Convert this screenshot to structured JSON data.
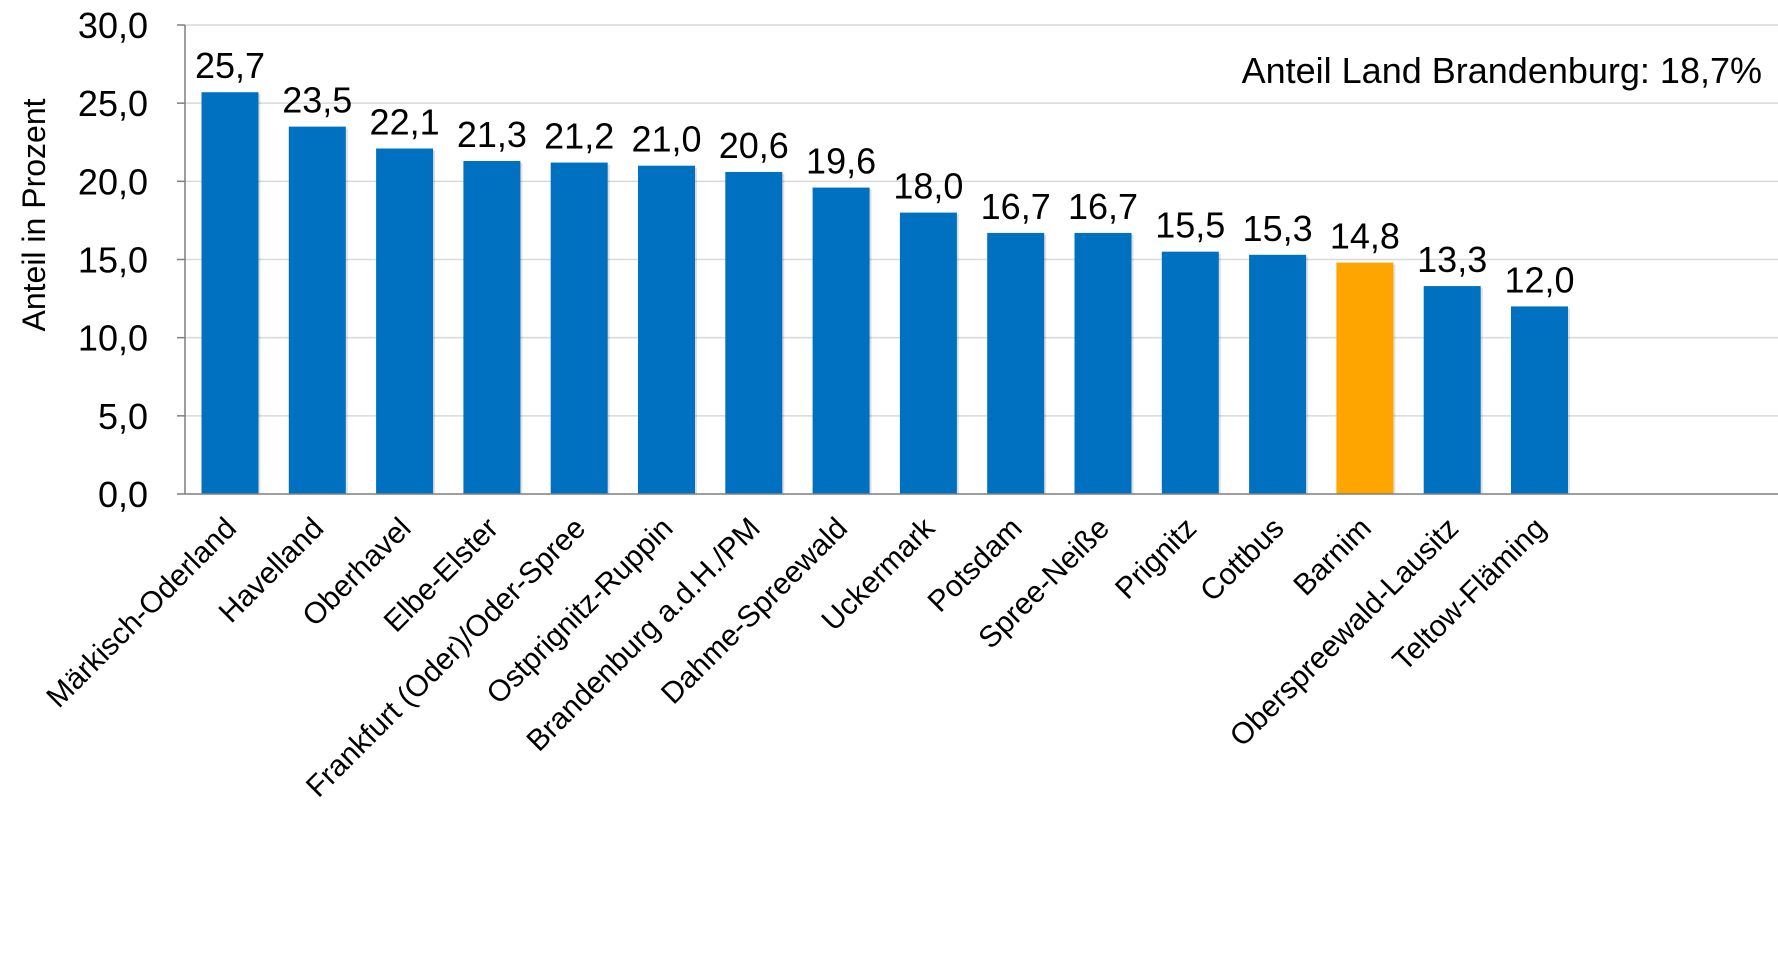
{
  "chart_data": {
    "type": "bar",
    "categories": [
      "Märkisch-Oderland",
      "Havelland",
      "Oberhavel",
      "Elbe-Elster",
      "Frankfurt (Oder)/Oder-Spree",
      "Ostprignitz-Ruppin",
      "Brandenburg a.d.H./PM",
      "Dahme-Spreewald",
      "Uckermark",
      "Potsdam",
      "Spree-Neiße",
      "Prignitz",
      "Cottbus",
      "Barnim",
      "Oberspreewald-Lausitz",
      "Teltow-Fläming"
    ],
    "values": [
      25.7,
      23.5,
      22.1,
      21.3,
      21.2,
      21.0,
      20.6,
      19.6,
      18.0,
      16.7,
      16.7,
      15.5,
      15.3,
      14.8,
      13.3,
      12.0
    ],
    "value_labels": [
      "25,7",
      "23,5",
      "22,1",
      "21,3",
      "21,2",
      "21,0",
      "20,6",
      "19,6",
      "18,0",
      "16,7",
      "16,7",
      "15,5",
      "15,3",
      "14,8",
      "13,3",
      "12,0"
    ],
    "highlight_index": 13,
    "ylabel": "Anteil in Prozent",
    "ylim": [
      0,
      30
    ],
    "yticks": [
      0,
      5,
      10,
      15,
      20,
      25,
      30
    ],
    "ytick_labels": [
      "0,0",
      "5,0",
      "10,0",
      "15,0",
      "20,0",
      "25,0",
      "30,0"
    ],
    "annotation": "Anteil Land Brandenburg: 18,7%",
    "grid": true,
    "colors": {
      "bar": "#0070C0",
      "highlight": "#FFA500",
      "grid": "#D9D9D9",
      "axis": "#7F7F7F"
    }
  }
}
